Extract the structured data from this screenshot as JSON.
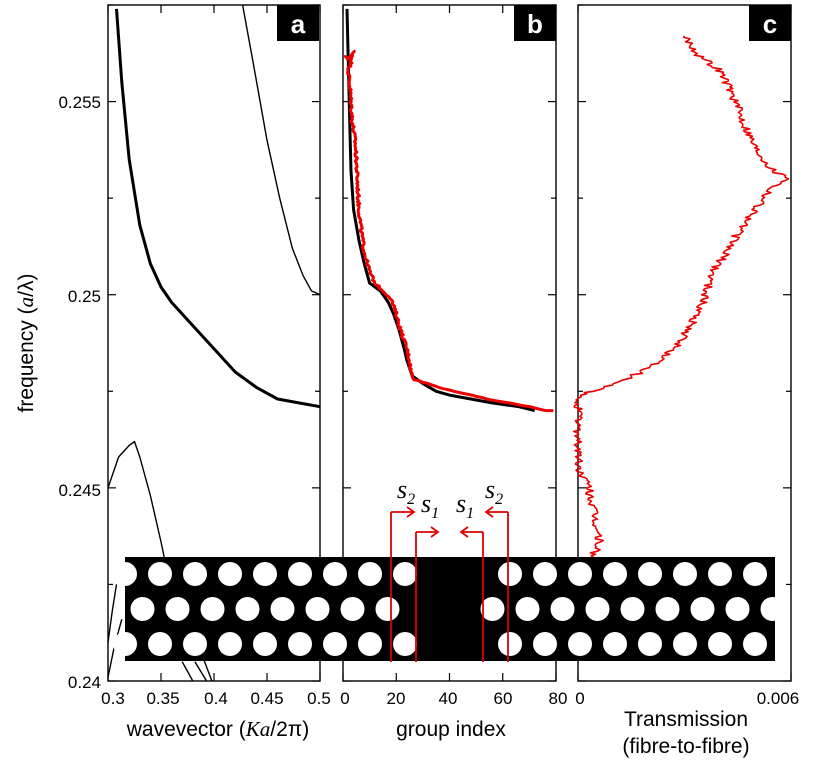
{
  "figure": {
    "ylabel_parts": [
      "frequency (",
      "a",
      "/λ)"
    ],
    "xlabel_a_parts": [
      "wavevector (",
      "Ka",
      "/2π)"
    ],
    "xlabel_b": "group index",
    "xlabel_c_line1": "Transmission",
    "xlabel_c_line2": "(fibre-to-fibre)",
    "panel_letters": [
      "a",
      "b",
      "c"
    ],
    "colors": {
      "measured": "#ee0000",
      "theory": "#000000",
      "slab": "#000000",
      "hole": "#ffffff",
      "annotation_arrow": "#dd0000"
    },
    "annotations": [
      {
        "base": "s",
        "sub": "2"
      },
      {
        "base": "s",
        "sub": "1"
      },
      {
        "base": "s",
        "sub": "1"
      },
      {
        "base": "s",
        "sub": "2"
      }
    ]
  },
  "chart_data": [
    {
      "panel": "a",
      "type": "line",
      "xlabel": "wavevector (Ka/2π)",
      "ylabel": "frequency (a/λ)",
      "xlim": [
        0.3,
        0.5
      ],
      "ylim": [
        0.24,
        0.2575
      ],
      "x_ticks": [
        "0.3",
        "0.35",
        "0.4",
        "0.45",
        "0.5"
      ],
      "y_ticks": [
        "0.24",
        "0.245",
        "0.25",
        "0.255"
      ],
      "series": [
        {
          "style": "thick",
          "points": [
            [
              0.308,
              0.2574
            ],
            [
              0.313,
              0.2555
            ],
            [
              0.32,
              0.2535
            ],
            [
              0.33,
              0.2518
            ],
            [
              0.34,
              0.2508
            ],
            [
              0.35,
              0.2502
            ],
            [
              0.36,
              0.2498
            ],
            [
              0.38,
              0.2492
            ],
            [
              0.4,
              0.2486
            ],
            [
              0.42,
              0.248
            ],
            [
              0.44,
              0.2476
            ],
            [
              0.46,
              0.2473
            ],
            [
              0.48,
              0.2472
            ],
            [
              0.5,
              0.2471
            ]
          ]
        },
        {
          "style": "thin",
          "points": [
            [
              0.427,
              0.2575
            ],
            [
              0.437,
              0.256
            ],
            [
              0.45,
              0.254
            ],
            [
              0.462,
              0.2525
            ],
            [
              0.474,
              0.2512
            ],
            [
              0.484,
              0.2505
            ],
            [
              0.492,
              0.2501
            ],
            [
              0.5,
              0.25
            ]
          ]
        },
        {
          "style": "thin",
          "points": [
            [
              0.3,
              0.245
            ],
            [
              0.31,
              0.2458
            ],
            [
              0.32,
              0.2461
            ],
            [
              0.325,
              0.2462
            ],
            [
              0.33,
              0.2458
            ],
            [
              0.34,
              0.2448
            ],
            [
              0.35,
              0.2436
            ],
            [
              0.36,
              0.2423
            ],
            [
              0.365,
              0.2415
            ],
            [
              0.37,
              0.2406
            ]
          ]
        },
        {
          "style": "thin",
          "points": [
            [
              0.3,
              0.241
            ],
            [
              0.304,
              0.2418
            ],
            [
              0.308,
              0.2425
            ]
          ]
        },
        {
          "style": "thin",
          "points": [
            [
              0.3,
              0.2401
            ],
            [
              0.306,
              0.2409
            ],
            [
              0.313,
              0.2416
            ]
          ]
        },
        {
          "style": "thin",
          "points": [
            [
              0.37,
              0.2405
            ],
            [
              0.38,
              0.24
            ]
          ]
        },
        {
          "style": "thin",
          "points": [
            [
              0.382,
              0.2405
            ],
            [
              0.393,
              0.24
            ]
          ]
        },
        {
          "style": "thin",
          "points": [
            [
              0.387,
              0.2408
            ],
            [
              0.398,
              0.24
            ]
          ]
        }
      ]
    },
    {
      "panel": "b",
      "type": "line",
      "xlabel": "group index",
      "xlim": [
        0,
        80
      ],
      "ylim": [
        0.24,
        0.2575
      ],
      "x_ticks": [
        "0",
        "20",
        "40",
        "60",
        "80"
      ],
      "series": [
        {
          "name": "theory",
          "style": "thick",
          "points": [
            [
              1.5,
              0.2574
            ],
            [
              2,
              0.256
            ],
            [
              2.5,
              0.2545
            ],
            [
              3,
              0.2532
            ],
            [
              4,
              0.2522
            ],
            [
              6,
              0.2514
            ],
            [
              8,
              0.2508
            ],
            [
              10,
              0.2503
            ],
            [
              14,
              0.2501
            ],
            [
              17,
              0.2498
            ],
            [
              19,
              0.2495
            ],
            [
              21,
              0.2491
            ],
            [
              23,
              0.2486
            ],
            [
              24,
              0.2483
            ],
            [
              26,
              0.2479
            ],
            [
              30,
              0.2477
            ],
            [
              35,
              0.2475
            ],
            [
              40,
              0.2474
            ],
            [
              48,
              0.2473
            ],
            [
              56,
              0.2472
            ],
            [
              66,
              0.2471
            ],
            [
              72,
              0.247
            ]
          ]
        },
        {
          "name": "measured",
          "style": "noisy",
          "points": [
            [
              0.5,
              0.2562
            ],
            [
              2,
              0.2561
            ],
            [
              4,
              0.2563
            ],
            [
              3,
              0.256
            ],
            [
              2,
              0.2558
            ],
            [
              2.5,
              0.2555
            ],
            [
              3,
              0.255
            ],
            [
              3.5,
              0.2545
            ],
            [
              4.5,
              0.254
            ],
            [
              5,
              0.2535
            ],
            [
              5.5,
              0.2528
            ],
            [
              6,
              0.2522
            ],
            [
              7,
              0.2516
            ],
            [
              8,
              0.2511
            ],
            [
              10,
              0.2506
            ],
            [
              12,
              0.2503
            ],
            [
              15,
              0.2501
            ],
            [
              18,
              0.2499
            ],
            [
              20,
              0.2495
            ],
            [
              22,
              0.249
            ],
            [
              24,
              0.2486
            ],
            [
              25,
              0.2483
            ],
            [
              25.5,
              0.248
            ],
            [
              27,
              0.2478
            ],
            [
              32,
              0.2477
            ],
            [
              36,
              0.2476
            ],
            [
              42,
              0.2475
            ],
            [
              48,
              0.2474
            ],
            [
              54,
              0.2473
            ],
            [
              62,
              0.2472
            ],
            [
              70,
              0.2471
            ],
            [
              76,
              0.247
            ],
            [
              79,
              0.247
            ]
          ]
        }
      ]
    },
    {
      "panel": "c",
      "type": "line",
      "xlabel": "Transmission (fibre-to-fibre)",
      "xlim": [
        0,
        0.006
      ],
      "ylim": [
        0.24,
        0.2575
      ],
      "x_ticks": [
        "0",
        "0.006"
      ],
      "series": [
        {
          "name": "measured",
          "style": "noisy",
          "points": [
            [
              0.003,
              0.2567
            ],
            [
              0.0034,
              0.2562
            ],
            [
              0.004,
              0.2558
            ],
            [
              0.0043,
              0.2553
            ],
            [
              0.0046,
              0.2546
            ],
            [
              0.005,
              0.2538
            ],
            [
              0.0055,
              0.2532
            ],
            [
              0.006,
              0.253
            ],
            [
              0.0055,
              0.2528
            ],
            [
              0.005,
              0.2522
            ],
            [
              0.0045,
              0.2516
            ],
            [
              0.0041,
              0.251
            ],
            [
              0.0038,
              0.2506
            ],
            [
              0.0036,
              0.25
            ],
            [
              0.0033,
              0.2494
            ],
            [
              0.0029,
              0.2488
            ],
            [
              0.0023,
              0.2483
            ],
            [
              0.0018,
              0.248
            ],
            [
              0.001,
              0.2477
            ],
            [
              0.0004,
              0.2475
            ],
            [
              0.0,
              0.2474
            ],
            [
              0.0,
              0.2465
            ],
            [
              0.0,
              0.2455
            ],
            [
              0.0003,
              0.245
            ],
            [
              0.0004,
              0.2445
            ],
            [
              0.0005,
              0.244
            ],
            [
              0.0006,
              0.2436
            ],
            [
              0.0004,
              0.2432
            ],
            [
              0.0003,
              0.243
            ]
          ]
        }
      ]
    }
  ]
}
